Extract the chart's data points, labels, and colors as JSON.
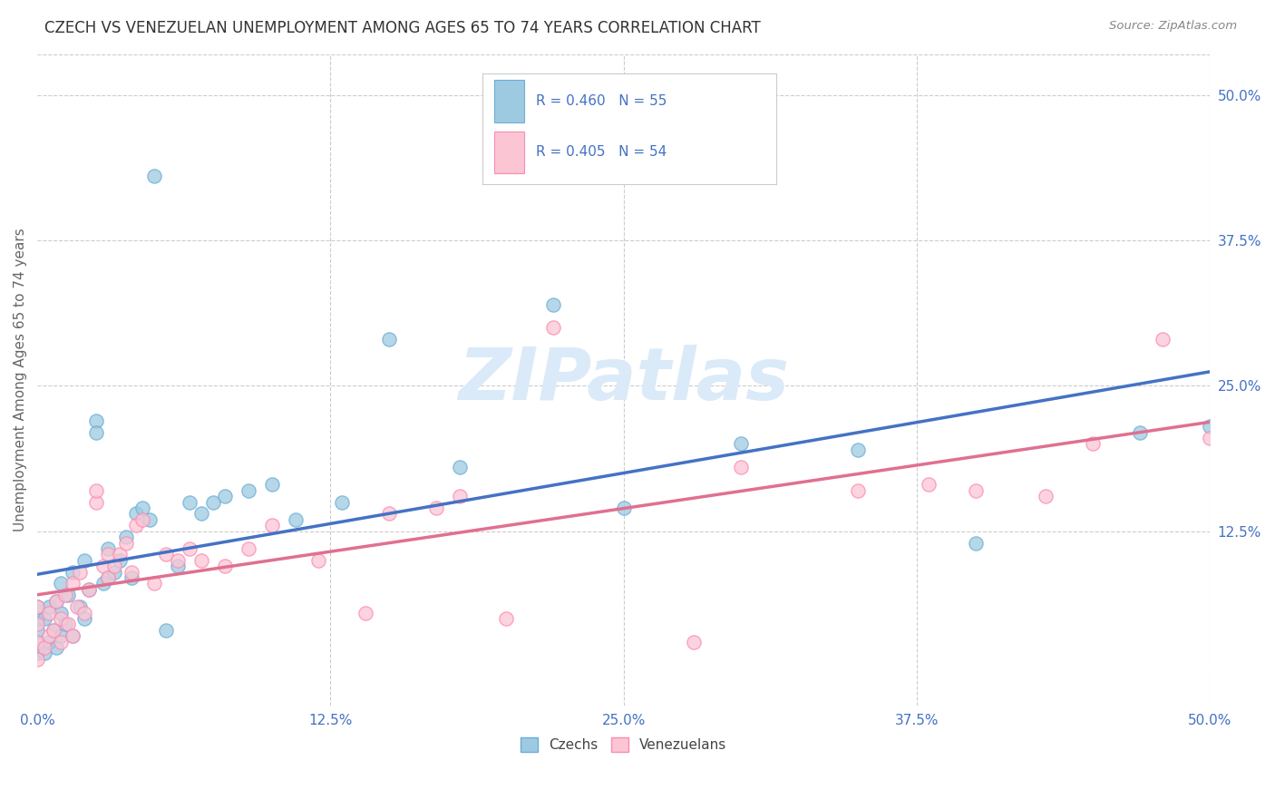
{
  "title": "CZECH VS VENEZUELAN UNEMPLOYMENT AMONG AGES 65 TO 74 YEARS CORRELATION CHART",
  "source": "Source: ZipAtlas.com",
  "ylabel": "Unemployment Among Ages 65 to 74 years",
  "xlim": [
    0.0,
    0.5
  ],
  "ylim": [
    -0.025,
    0.535
  ],
  "xtick_vals": [
    0.0,
    0.125,
    0.25,
    0.375,
    0.5
  ],
  "ytick_vals_right": [
    0.5,
    0.375,
    0.25,
    0.125
  ],
  "ytick_labels_right": [
    "50.0%",
    "37.5%",
    "25.0%",
    "12.5%"
  ],
  "czech_color": "#9ecae1",
  "czech_edge_color": "#6baed6",
  "venezuelan_color": "#fcc5d4",
  "venezuelan_edge_color": "#f98cb1",
  "czech_line_color": "#4472c4",
  "venezuelan_line_color": "#e07090",
  "background_color": "#ffffff",
  "watermark": "ZIPatlas",
  "watermark_color": "#daeaf8",
  "czech_R": 0.46,
  "czech_N": 55,
  "venezuelan_R": 0.405,
  "venezuelan_N": 54,
  "czech_x": [
    0.0,
    0.0,
    0.0,
    0.0,
    0.0,
    0.003,
    0.003,
    0.005,
    0.005,
    0.007,
    0.008,
    0.008,
    0.01,
    0.01,
    0.01,
    0.012,
    0.013,
    0.015,
    0.015,
    0.018,
    0.02,
    0.02,
    0.022,
    0.025,
    0.025,
    0.028,
    0.03,
    0.03,
    0.033,
    0.035,
    0.038,
    0.04,
    0.042,
    0.045,
    0.048,
    0.05,
    0.055,
    0.06,
    0.065,
    0.07,
    0.075,
    0.08,
    0.09,
    0.1,
    0.11,
    0.13,
    0.15,
    0.18,
    0.22,
    0.25,
    0.3,
    0.35,
    0.4,
    0.47,
    0.5
  ],
  "czech_y": [
    0.02,
    0.03,
    0.04,
    0.05,
    0.06,
    0.02,
    0.05,
    0.03,
    0.06,
    0.04,
    0.025,
    0.065,
    0.035,
    0.055,
    0.08,
    0.045,
    0.07,
    0.035,
    0.09,
    0.06,
    0.05,
    0.1,
    0.075,
    0.22,
    0.21,
    0.08,
    0.085,
    0.11,
    0.09,
    0.1,
    0.12,
    0.085,
    0.14,
    0.145,
    0.135,
    0.43,
    0.04,
    0.095,
    0.15,
    0.14,
    0.15,
    0.155,
    0.16,
    0.165,
    0.135,
    0.15,
    0.29,
    0.18,
    0.32,
    0.145,
    0.2,
    0.195,
    0.115,
    0.21,
    0.215
  ],
  "ven_x": [
    0.0,
    0.0,
    0.0,
    0.0,
    0.003,
    0.005,
    0.005,
    0.007,
    0.008,
    0.01,
    0.01,
    0.012,
    0.013,
    0.015,
    0.015,
    0.017,
    0.018,
    0.02,
    0.022,
    0.025,
    0.025,
    0.028,
    0.03,
    0.03,
    0.033,
    0.035,
    0.038,
    0.04,
    0.042,
    0.045,
    0.05,
    0.055,
    0.06,
    0.065,
    0.07,
    0.08,
    0.09,
    0.1,
    0.12,
    0.14,
    0.15,
    0.17,
    0.18,
    0.2,
    0.22,
    0.28,
    0.3,
    0.35,
    0.38,
    0.4,
    0.43,
    0.45,
    0.48,
    0.5
  ],
  "ven_y": [
    0.015,
    0.03,
    0.045,
    0.06,
    0.025,
    0.035,
    0.055,
    0.04,
    0.065,
    0.03,
    0.05,
    0.07,
    0.045,
    0.035,
    0.08,
    0.06,
    0.09,
    0.055,
    0.075,
    0.15,
    0.16,
    0.095,
    0.085,
    0.105,
    0.095,
    0.105,
    0.115,
    0.09,
    0.13,
    0.135,
    0.08,
    0.105,
    0.1,
    0.11,
    0.1,
    0.095,
    0.11,
    0.13,
    0.1,
    0.055,
    0.14,
    0.145,
    0.155,
    0.05,
    0.3,
    0.03,
    0.18,
    0.16,
    0.165,
    0.16,
    0.155,
    0.2,
    0.29,
    0.205
  ]
}
